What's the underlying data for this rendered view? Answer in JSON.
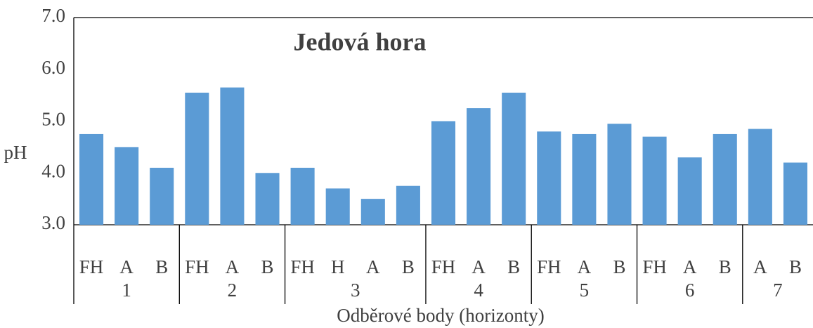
{
  "chart_data": {
    "type": "bar",
    "title": "Jedová hora",
    "y_label": "pH",
    "x_label": "Odběrové body (horizonty)",
    "color": "#5b9bd5",
    "groups": [
      {
        "name": "1",
        "categories": [
          "FH",
          "A",
          "B"
        ],
        "values": [
          4.75,
          4.5,
          4.1
        ]
      },
      {
        "name": "2",
        "categories": [
          "FH",
          "A",
          "B"
        ],
        "values": [
          5.55,
          5.65,
          4.0
        ]
      },
      {
        "name": "3",
        "categories": [
          "FH",
          "H",
          "A",
          "B"
        ],
        "values": [
          4.1,
          3.7,
          3.5,
          3.75
        ]
      },
      {
        "name": "4",
        "categories": [
          "FH",
          "A",
          "B"
        ],
        "values": [
          5.0,
          5.25,
          5.55
        ]
      },
      {
        "name": "5",
        "categories": [
          "FH",
          "A",
          "B"
        ],
        "values": [
          4.8,
          4.75,
          4.95
        ]
      },
      {
        "name": "6",
        "categories": [
          "FH",
          "A",
          "B"
        ],
        "values": [
          4.7,
          4.3,
          4.75
        ]
      },
      {
        "name": "7",
        "categories": [
          "A",
          "B"
        ],
        "values": [
          4.85,
          4.2
        ]
      }
    ],
    "ylim": [
      3,
      7
    ],
    "yticks": [
      {
        "value": 3,
        "label": "3.0"
      },
      {
        "value": 4,
        "label": "4.0"
      },
      {
        "value": 5,
        "label": "5.0"
      },
      {
        "value": 6,
        "label": "6.0"
      },
      {
        "value": 7,
        "label": "7.0"
      }
    ],
    "grid": false
  }
}
